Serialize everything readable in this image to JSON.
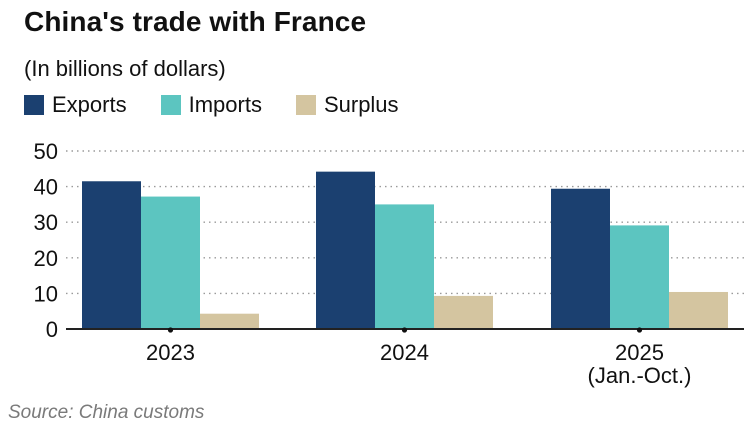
{
  "title": "China's trade with France",
  "subtitle": "(In billions of dollars)",
  "source": "Source: China customs",
  "chart_data": {
    "type": "bar",
    "categories": [
      "2023",
      "2024",
      "2025"
    ],
    "category_sublabels": [
      "",
      "",
      "(Jan.-Oct.)"
    ],
    "series": [
      {
        "name": "Exports",
        "color": "#1b4070",
        "values": [
          41.5,
          44.2,
          39.4
        ]
      },
      {
        "name": "Imports",
        "color": "#5cc5c0",
        "values": [
          37.2,
          35.0,
          29.1
        ]
      },
      {
        "name": "Surplus",
        "color": "#d4c5a0",
        "values": [
          4.3,
          9.3,
          10.4
        ]
      }
    ],
    "yticks": [
      0,
      10,
      20,
      30,
      40,
      50
    ],
    "ylim": [
      0,
      50
    ],
    "grid": true,
    "legend_position": "top-left"
  }
}
